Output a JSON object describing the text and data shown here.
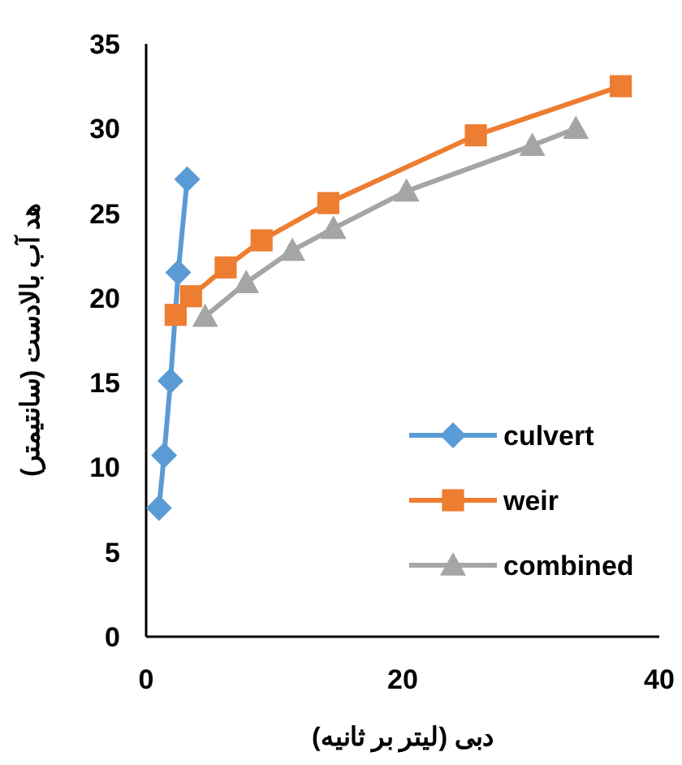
{
  "chart_data": {
    "type": "line",
    "xlabel": "دبی (لیتر بر ثانیه)",
    "ylabel": "هد آب بالادست (سانتیمتر)",
    "xlim": [
      0,
      40
    ],
    "xticks": [
      0,
      20,
      40
    ],
    "ylim": [
      0,
      35
    ],
    "yticks": [
      0,
      5,
      10,
      15,
      20,
      25,
      30,
      35
    ],
    "grid": false,
    "legend": "bottom right",
    "series": [
      {
        "name": "culvert",
        "color": "#5b9bd5",
        "marker": "diamond",
        "x": [
          1.0,
          1.4,
          1.9,
          2.5,
          3.2
        ],
        "values": [
          7.6,
          10.7,
          15.1,
          21.5,
          27.0
        ]
      },
      {
        "name": "weir",
        "color": "#ed7d31",
        "marker": "square",
        "x": [
          2.3,
          3.5,
          6.2,
          9.0,
          14.2,
          25.7,
          37.0
        ],
        "values": [
          19.0,
          20.1,
          21.8,
          23.4,
          25.6,
          29.6,
          32.5
        ]
      },
      {
        "name": "combined",
        "color": "#a5a5a5",
        "marker": "triangle",
        "x": [
          4.6,
          7.8,
          11.4,
          14.6,
          20.3,
          30.1,
          33.5
        ],
        "values": [
          18.9,
          20.9,
          22.8,
          24.1,
          26.3,
          29.0,
          30.0
        ]
      }
    ]
  }
}
